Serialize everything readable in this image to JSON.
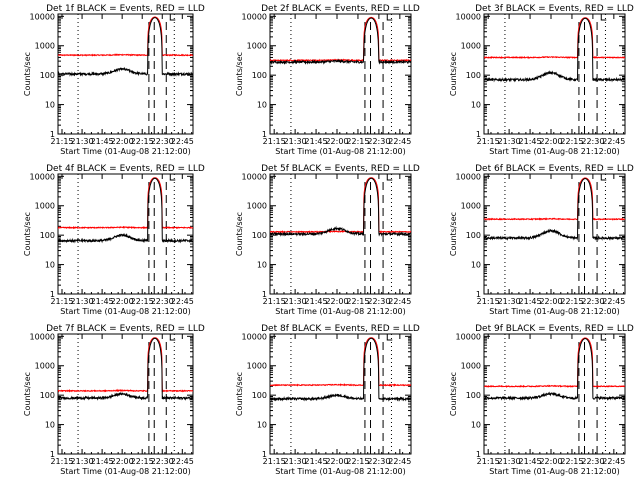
{
  "colors": {
    "events": "#000000",
    "lld": "#ff0000",
    "axes": "#000000",
    "background": "#ffffff"
  },
  "chart_data": {
    "type": "line",
    "layout": "3x3 grid of panels",
    "shared": {
      "xlabel": "Start Time (01-Aug-08 21:12:00)",
      "ylabel": "Counts/sec",
      "x_ticks": [
        "21:15",
        "21:30",
        "21:45",
        "22:00",
        "22:15",
        "22:30",
        "22:45"
      ],
      "x_tick_minutes": [
        195,
        210,
        225,
        240,
        255,
        270,
        285
      ],
      "xlim_minutes_after_midnight_utc_minus_18h": [
        192,
        293
      ],
      "yscale": "log",
      "ylim": [
        1,
        12000
      ],
      "y_ticks": [
        "1",
        "10",
        "100",
        "1000",
        "10000"
      ],
      "vertical_markers": {
        "dotted_minutes": [
          207,
          279
        ],
        "dashed_minutes": [
          260,
          264,
          273
        ]
      },
      "series": [
        {
          "name": "Events",
          "color": "black"
        },
        {
          "name": "LLD",
          "color": "red"
        }
      ]
    },
    "panels": [
      {
        "title": "Det 1f BLACK = Events, RED = LLD",
        "events_base": 110,
        "lld_base": 480,
        "peak": 9500,
        "events_bump": 160
      },
      {
        "title": "Det 2f BLACK = Events, RED = LLD",
        "events_base": 280,
        "lld_base": 320,
        "peak": 9200,
        "events_bump": 300
      },
      {
        "title": "Det 3f BLACK = Events, RED = LLD",
        "events_base": 70,
        "lld_base": 400,
        "peak": 9000,
        "events_bump": 120
      },
      {
        "title": "Det 4f BLACK = Events, RED = LLD",
        "events_base": 65,
        "lld_base": 180,
        "peak": 9000,
        "events_bump": 100
      },
      {
        "title": "Det 5f BLACK = Events, RED = LLD",
        "events_base": 110,
        "lld_base": 130,
        "peak": 9000,
        "events_bump": 170
      },
      {
        "title": "Det 6f BLACK = Events, RED = LLD",
        "events_base": 80,
        "lld_base": 350,
        "peak": 8800,
        "events_bump": 140
      },
      {
        "title": "Det 7f BLACK = Events, RED = LLD",
        "events_base": 80,
        "lld_base": 140,
        "peak": 9000,
        "events_bump": 110
      },
      {
        "title": "Det 8f BLACK = Events, RED = LLD",
        "events_base": 75,
        "lld_base": 220,
        "peak": 9000,
        "events_bump": 100
      },
      {
        "title": "Det 9f BLACK = Events, RED = LLD",
        "events_base": 80,
        "lld_base": 200,
        "peak": 8800,
        "events_bump": 110
      }
    ]
  }
}
